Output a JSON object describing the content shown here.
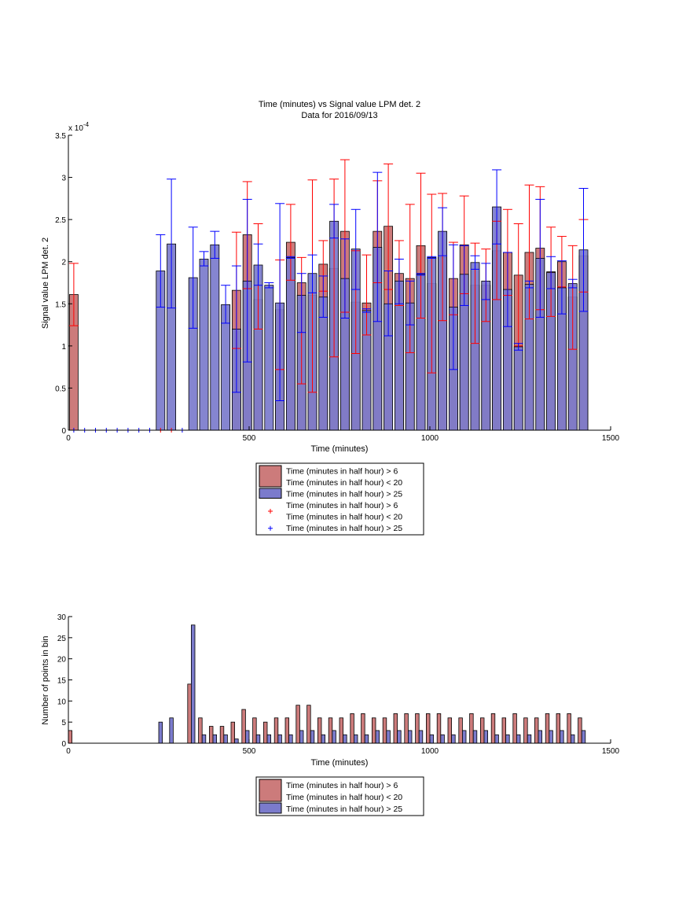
{
  "chart_data": [
    {
      "type": "bar",
      "title": "Time (minutes) vs Signal value LPM det. 2",
      "subtitle": "Data for 2016/09/13",
      "xlabel": "Time (minutes)",
      "ylabel": "Signal value LPM det. 2",
      "exponent_label": "x 10",
      "exponent_power": "-4",
      "xlim": [
        0,
        1500
      ],
      "ylim": [
        0,
        3.5
      ],
      "value_scale": 0.0001,
      "x_ticks": [
        0,
        500,
        1000,
        1500
      ],
      "y_ticks": [
        0,
        0.5,
        1,
        1.5,
        2,
        2.5,
        3,
        3.5
      ],
      "x_tick_labels": [
        "0",
        "500",
        "1000",
        "1500"
      ],
      "y_tick_labels": [
        "0",
        "0.5",
        "1",
        "1.5",
        "2",
        "2.5",
        "3",
        "3.5"
      ],
      "grid": false,
      "legend_position": "below-axes",
      "legend": [
        "Time (minutes in half hour) > 6\nTime (minutes in half hour) < 20",
        "Time (minutes in half hour) > 25",
        "Time (minutes in half hour) > 6\nTime (minutes in half hour) < 20",
        "Time (minutes in half hour) > 25"
      ],
      "series": [
        {
          "name": "Time (minutes in half hour) > 6 Time (minutes in half hour) < 20",
          "color": "#cc7b7b",
          "errorbar_color": "#ff0000",
          "points": [
            {
              "x": 15,
              "y": 1.61,
              "lo": 1.24,
              "hi": 1.98
            },
            {
              "x": 465,
              "y": 1.66,
              "lo": 0.97,
              "hi": 2.35
            },
            {
              "x": 495,
              "y": 2.32,
              "lo": 1.68,
              "hi": 2.95
            },
            {
              "x": 525,
              "y": 1.55,
              "lo": 1.2,
              "hi": 2.45
            },
            {
              "x": 585,
              "y": 1.43,
              "lo": 0.72,
              "hi": 2.02
            },
            {
              "x": 615,
              "y": 2.23,
              "lo": 1.78,
              "hi": 2.68
            },
            {
              "x": 645,
              "y": 1.75,
              "lo": 0.55,
              "hi": 2.05
            },
            {
              "x": 675,
              "y": 1.6,
              "lo": 0.45,
              "hi": 2.97
            },
            {
              "x": 705,
              "y": 1.97,
              "lo": 1.65,
              "hi": 2.25
            },
            {
              "x": 735,
              "y": 1.92,
              "lo": 0.87,
              "hi": 2.98
            },
            {
              "x": 765,
              "y": 2.36,
              "lo": 1.4,
              "hi": 3.21
            },
            {
              "x": 795,
              "y": 1.52,
              "lo": 0.91,
              "hi": 2.13
            },
            {
              "x": 825,
              "y": 1.51,
              "lo": 1.13,
              "hi": 2.08
            },
            {
              "x": 855,
              "y": 2.36,
              "lo": 1.75,
              "hi": 2.96
            },
            {
              "x": 885,
              "y": 2.42,
              "lo": 1.67,
              "hi": 3.16
            },
            {
              "x": 915,
              "y": 1.86,
              "lo": 1.48,
              "hi": 2.25
            },
            {
              "x": 945,
              "y": 1.8,
              "lo": 0.92,
              "hi": 2.68
            },
            {
              "x": 975,
              "y": 2.19,
              "lo": 1.33,
              "hi": 3.05
            },
            {
              "x": 1005,
              "y": 1.74,
              "lo": 0.68,
              "hi": 2.8
            },
            {
              "x": 1035,
              "y": 2.05,
              "lo": 1.3,
              "hi": 2.81
            },
            {
              "x": 1065,
              "y": 1.8,
              "lo": 1.37,
              "hi": 2.23
            },
            {
              "x": 1095,
              "y": 2.2,
              "lo": 1.62,
              "hi": 2.78
            },
            {
              "x": 1125,
              "y": 1.72,
              "lo": 1.03,
              "hi": 2.22
            },
            {
              "x": 1155,
              "y": 1.72,
              "lo": 1.29,
              "hi": 2.15
            },
            {
              "x": 1185,
              "y": 2.13,
              "lo": 1.55,
              "hi": 2.48
            },
            {
              "x": 1215,
              "y": 2.11,
              "lo": 1.6,
              "hi": 2.62
            },
            {
              "x": 1245,
              "y": 1.84,
              "lo": 1.0,
              "hi": 2.45
            },
            {
              "x": 1275,
              "y": 2.11,
              "lo": 1.32,
              "hi": 2.91
            },
            {
              "x": 1305,
              "y": 2.16,
              "lo": 1.43,
              "hi": 2.89
            },
            {
              "x": 1335,
              "y": 1.88,
              "lo": 1.35,
              "hi": 2.41
            },
            {
              "x": 1365,
              "y": 2.0,
              "lo": 1.7,
              "hi": 2.3
            },
            {
              "x": 1395,
              "y": 1.58,
              "lo": 0.96,
              "hi": 2.19
            },
            {
              "x": 1425,
              "y": 2.07,
              "lo": 1.64,
              "hi": 2.5
            }
          ]
        },
        {
          "name": "Time (minutes in half hour) > 25",
          "color": "#7b7bcc",
          "errorbar_color": "#0000ff",
          "points": [
            {
              "x": 255,
              "y": 1.89,
              "lo": 1.46,
              "hi": 2.32
            },
            {
              "x": 285,
              "y": 2.21,
              "lo": 1.45,
              "hi": 2.98
            },
            {
              "x": 345,
              "y": 1.81,
              "lo": 1.21,
              "hi": 2.41
            },
            {
              "x": 375,
              "y": 2.03,
              "lo": 1.95,
              "hi": 2.12
            },
            {
              "x": 405,
              "y": 2.2,
              "lo": 2.04,
              "hi": 2.36
            },
            {
              "x": 435,
              "y": 1.49,
              "lo": 1.27,
              "hi": 1.72
            },
            {
              "x": 465,
              "y": 1.2,
              "lo": 0.45,
              "hi": 1.95
            },
            {
              "x": 495,
              "y": 1.77,
              "lo": 0.81,
              "hi": 2.74
            },
            {
              "x": 525,
              "y": 1.96,
              "lo": 1.72,
              "hi": 2.21
            },
            {
              "x": 555,
              "y": 1.72,
              "lo": 1.69,
              "hi": 1.75
            },
            {
              "x": 585,
              "y": 1.51,
              "lo": 0.35,
              "hi": 2.69
            },
            {
              "x": 615,
              "y": 2.05,
              "lo": 2.04,
              "hi": 2.06
            },
            {
              "x": 645,
              "y": 1.6,
              "lo": 1.16,
              "hi": 1.86
            },
            {
              "x": 675,
              "y": 1.86,
              "lo": 1.63,
              "hi": 2.08
            },
            {
              "x": 705,
              "y": 1.58,
              "lo": 1.34,
              "hi": 1.83
            },
            {
              "x": 735,
              "y": 2.48,
              "lo": 2.28,
              "hi": 2.68
            },
            {
              "x": 765,
              "y": 1.8,
              "lo": 1.33,
              "hi": 2.27
            },
            {
              "x": 795,
              "y": 2.15,
              "lo": 1.67,
              "hi": 2.62
            },
            {
              "x": 825,
              "y": 1.42,
              "lo": 1.4,
              "hi": 1.44
            },
            {
              "x": 855,
              "y": 2.17,
              "lo": 1.29,
              "hi": 3.06
            },
            {
              "x": 885,
              "y": 1.5,
              "lo": 1.12,
              "hi": 1.89
            },
            {
              "x": 915,
              "y": 1.77,
              "lo": 1.5,
              "hi": 2.03
            },
            {
              "x": 945,
              "y": 1.51,
              "lo": 1.25,
              "hi": 1.77
            },
            {
              "x": 975,
              "y": 1.85,
              "lo": 1.84,
              "hi": 1.86
            },
            {
              "x": 1005,
              "y": 2.05,
              "lo": 2.04,
              "hi": 2.06
            },
            {
              "x": 1035,
              "y": 2.36,
              "lo": 2.07,
              "hi": 2.64
            },
            {
              "x": 1065,
              "y": 1.46,
              "lo": 0.72,
              "hi": 2.2
            },
            {
              "x": 1095,
              "y": 1.85,
              "lo": 1.48,
              "hi": 2.19
            },
            {
              "x": 1125,
              "y": 1.99,
              "lo": 1.91,
              "hi": 2.07
            },
            {
              "x": 1155,
              "y": 1.77,
              "lo": 1.55,
              "hi": 1.98
            },
            {
              "x": 1185,
              "y": 2.65,
              "lo": 2.21,
              "hi": 3.09
            },
            {
              "x": 1215,
              "y": 1.67,
              "lo": 1.23,
              "hi": 2.11
            },
            {
              "x": 1245,
              "y": 0.99,
              "lo": 0.95,
              "hi": 1.03
            },
            {
              "x": 1275,
              "y": 1.73,
              "lo": 1.69,
              "hi": 1.77
            },
            {
              "x": 1305,
              "y": 2.04,
              "lo": 1.34,
              "hi": 2.74
            },
            {
              "x": 1335,
              "y": 1.87,
              "lo": 1.68,
              "hi": 2.06
            },
            {
              "x": 1365,
              "y": 1.69,
              "lo": 1.38,
              "hi": 2.01
            },
            {
              "x": 1395,
              "y": 1.74,
              "lo": 1.69,
              "hi": 1.79
            },
            {
              "x": 1425,
              "y": 2.14,
              "lo": 1.41,
              "hi": 2.87
            }
          ]
        }
      ],
      "zero_markers": [
        {
          "series": 0,
          "x": [
            255,
            285
          ]
        },
        {
          "series": 1,
          "x": [
            15,
            45,
            75,
            105,
            135,
            165,
            195,
            225,
            315
          ]
        }
      ]
    },
    {
      "type": "bar",
      "title": "",
      "xlabel": "Time (minutes)",
      "ylabel": "Number of points in bin",
      "xlim": [
        0,
        1500
      ],
      "ylim": [
        0,
        30
      ],
      "x_ticks": [
        0,
        500,
        1000,
        1500
      ],
      "y_ticks": [
        0,
        5,
        10,
        15,
        20,
        25,
        30
      ],
      "x_tick_labels": [
        "0",
        "500",
        "1000",
        "1500"
      ],
      "y_tick_labels": [
        "0",
        "5",
        "10",
        "15",
        "20",
        "25",
        "30"
      ],
      "grid": false,
      "legend_position": "below-axes",
      "legend": [
        "Time (minutes in half hour) > 6\nTime (minutes in half hour) < 20",
        "Time (minutes in half hour) > 25"
      ],
      "bar_width": 10,
      "series": [
        {
          "name": "Time (minutes in half hour) > 6 Time (minutes in half hour) < 20",
          "color": "#cc7b7b",
          "x": [
            5,
            335,
            365,
            395,
            425,
            455,
            485,
            515,
            545,
            575,
            605,
            635,
            665,
            695,
            725,
            755,
            785,
            815,
            845,
            875,
            905,
            935,
            965,
            995,
            1025,
            1055,
            1085,
            1115,
            1145,
            1175,
            1205,
            1235,
            1265,
            1295,
            1325,
            1355,
            1385,
            1415
          ],
          "values": [
            3,
            14,
            6,
            4,
            4,
            5,
            8,
            6,
            5,
            6,
            6,
            9,
            9,
            6,
            6,
            6,
            7,
            7,
            6,
            6,
            7,
            7,
            7,
            7,
            7,
            6,
            6,
            7,
            6,
            7,
            6,
            7,
            6,
            6,
            7,
            7,
            7,
            6
          ]
        },
        {
          "name": "Time (minutes in half hour) > 25",
          "color": "#7b7bcc",
          "x": [
            255,
            285,
            345,
            375,
            405,
            435,
            465,
            495,
            525,
            555,
            585,
            615,
            645,
            675,
            705,
            735,
            765,
            795,
            825,
            855,
            885,
            915,
            945,
            975,
            1005,
            1035,
            1065,
            1095,
            1125,
            1155,
            1185,
            1215,
            1245,
            1275,
            1305,
            1335,
            1365,
            1395,
            1425
          ],
          "values": [
            5,
            6,
            28,
            2,
            2,
            2,
            1,
            3,
            2,
            2,
            2,
            2,
            3,
            3,
            2,
            3,
            2,
            2,
            2,
            3,
            3,
            3,
            3,
            3,
            2,
            2,
            2,
            3,
            3,
            3,
            2,
            2,
            2,
            2,
            3,
            3,
            3,
            2,
            3
          ]
        }
      ]
    }
  ]
}
